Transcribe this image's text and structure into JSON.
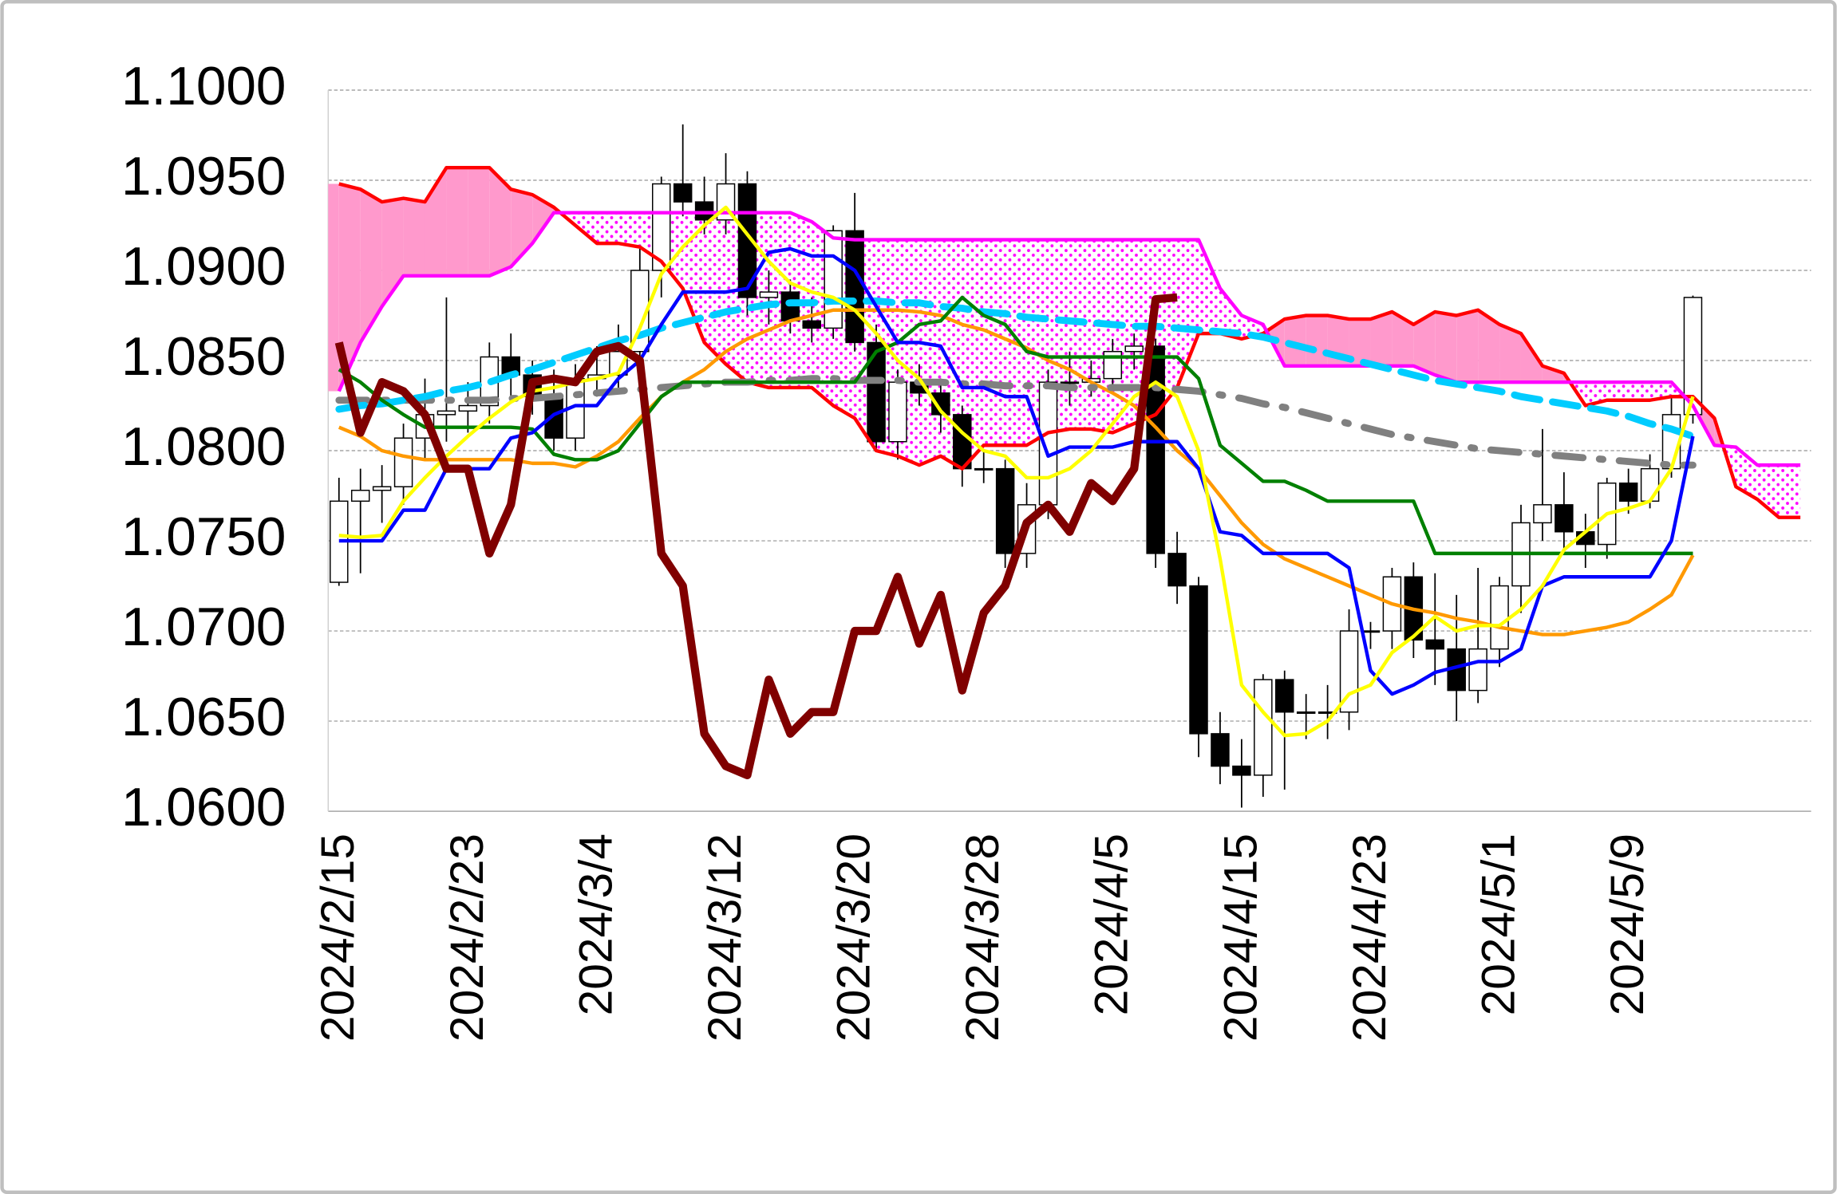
{
  "chart_data": {
    "type": "candlestick",
    "categories": [
      "2024/2/15",
      null,
      null,
      null,
      null,
      null,
      "2024/2/23",
      null,
      null,
      null,
      null,
      null,
      "2024/3/4",
      null,
      null,
      null,
      null,
      null,
      "2024/3/12",
      null,
      null,
      null,
      null,
      null,
      "2024/3/20",
      null,
      null,
      null,
      null,
      null,
      "2024/3/28",
      null,
      null,
      null,
      null,
      null,
      "2024/4/5",
      null,
      null,
      null,
      null,
      null,
      "2024/4/15",
      null,
      null,
      null,
      null,
      null,
      "2024/4/23",
      null,
      null,
      null,
      null,
      null,
      "2024/5/1",
      null,
      null,
      null,
      null,
      null,
      "2024/5/9",
      null,
      null,
      null,
      null,
      null,
      null,
      null,
      null
    ],
    "open": [
      1.0727,
      1.0772,
      1.0778,
      1.078,
      1.0807,
      1.082,
      1.0822,
      1.0825,
      1.0852,
      1.0842,
      1.083,
      1.0807,
      1.084,
      1.0842,
      1.0855,
      1.09,
      1.0948,
      1.0938,
      1.0928,
      1.0948,
      1.0885,
      1.0888,
      1.0872,
      1.0868,
      1.0922,
      1.086,
      1.0805,
      1.0838,
      1.0832,
      1.082,
      1.079,
      1.079,
      1.0743,
      1.077,
      1.0838,
      1.0838,
      1.084,
      1.0855,
      1.0858,
      1.0743,
      1.0725,
      1.0643,
      1.0625,
      1.062,
      1.0673,
      1.0655,
      1.0655,
      1.0655,
      1.07,
      1.07,
      1.073,
      1.0695,
      1.069,
      1.0667,
      1.069,
      1.0725,
      1.076,
      1.077,
      1.0755,
      1.0748,
      1.0782,
      1.0772,
      1.079,
      1.082,
      null,
      null,
      null,
      null,
      null
    ],
    "high": [
      1.0785,
      1.079,
      1.0792,
      1.0815,
      1.084,
      1.0885,
      1.0838,
      1.086,
      1.0865,
      1.085,
      1.0845,
      1.0848,
      1.0858,
      1.087,
      1.0912,
      1.0952,
      1.0981,
      1.0952,
      1.0965,
      1.0955,
      1.09,
      1.0895,
      1.0885,
      1.0925,
      1.0943,
      1.087,
      1.0845,
      1.0848,
      1.084,
      1.0825,
      1.08,
      1.0795,
      1.0782,
      1.0845,
      1.0855,
      1.085,
      1.0862,
      1.0865,
      1.0862,
      1.0755,
      1.073,
      1.0655,
      1.064,
      1.0676,
      1.0678,
      1.0665,
      1.067,
      1.0712,
      1.0705,
      1.0735,
      1.0738,
      1.0732,
      1.072,
      1.0735,
      1.073,
      1.077,
      1.0812,
      1.0788,
      1.0765,
      1.0785,
      1.079,
      1.0798,
      1.083,
      1.0886,
      null,
      null,
      null,
      null,
      null
    ],
    "low": [
      1.0725,
      1.0732,
      1.076,
      1.077,
      1.0795,
      1.0805,
      1.081,
      1.0815,
      1.083,
      1.082,
      1.08,
      1.08,
      1.083,
      1.0835,
      1.085,
      1.0885,
      1.093,
      1.092,
      1.092,
      1.0875,
      1.087,
      1.0865,
      1.086,
      1.0862,
      1.0855,
      1.08,
      1.0795,
      1.0825,
      1.081,
      1.078,
      1.0782,
      1.0735,
      1.0735,
      1.0762,
      1.0825,
      1.083,
      1.0835,
      1.0845,
      1.0735,
      1.0715,
      1.063,
      1.0615,
      1.0602,
      1.0608,
      1.0612,
      1.064,
      1.064,
      1.0645,
      1.069,
      1.069,
      1.0685,
      1.067,
      1.065,
      1.066,
      1.068,
      1.071,
      1.075,
      1.0745,
      1.0735,
      1.074,
      1.0765,
      1.0768,
      1.0785,
      1.0815,
      null,
      null,
      null,
      null,
      null
    ],
    "close": [
      1.0772,
      1.0778,
      1.078,
      1.0807,
      1.082,
      1.0822,
      1.0825,
      1.0852,
      1.0842,
      1.083,
      1.0807,
      1.084,
      1.0842,
      1.0855,
      1.09,
      1.0948,
      1.0938,
      1.0928,
      1.0948,
      1.0885,
      1.0888,
      1.0872,
      1.0868,
      1.0922,
      1.086,
      1.0805,
      1.0838,
      1.0832,
      1.082,
      1.079,
      1.079,
      1.0743,
      1.077,
      1.0838,
      1.0838,
      1.084,
      1.0855,
      1.0858,
      1.0743,
      1.0725,
      1.0643,
      1.0625,
      1.062,
      1.0673,
      1.0655,
      1.0655,
      1.0655,
      1.07,
      1.07,
      1.073,
      1.0695,
      1.069,
      1.0667,
      1.069,
      1.0725,
      1.076,
      1.077,
      1.0755,
      1.0748,
      1.0782,
      1.0772,
      1.079,
      1.082,
      1.0885,
      null,
      null,
      null,
      null,
      null
    ],
    "up_color": "#ffffff",
    "down_color": "#000000",
    "cloud": {
      "a_above": "#ff99cc",
      "b_above": "#ff00ff"
    },
    "series": [
      {
        "cloud": "a",
        "color": "#ff0000",
        "width": 3,
        "values": [
          1.0948,
          1.0945,
          1.0938,
          1.094,
          1.0938,
          1.0957,
          1.0957,
          1.0957,
          1.0945,
          1.0942,
          1.0935,
          1.0925,
          1.0915,
          1.0915,
          1.0913,
          1.0905,
          1.089,
          1.086,
          1.0848,
          1.0838,
          1.0835,
          1.0835,
          1.0835,
          1.0825,
          1.0818,
          1.08,
          1.0797,
          1.0792,
          1.0797,
          1.079,
          1.0803,
          1.0803,
          1.0803,
          1.081,
          1.0812,
          1.0812,
          1.081,
          1.0815,
          1.082,
          1.0835,
          1.0865,
          1.0865,
          1.0862,
          1.0865,
          1.0873,
          1.0875,
          1.0875,
          1.0873,
          1.0873,
          1.0877,
          1.087,
          1.0877,
          1.0875,
          1.0878,
          1.087,
          1.0865,
          1.0847,
          1.0843,
          1.0825,
          1.0828,
          1.0828,
          1.0828,
          1.083,
          1.083,
          1.0818,
          1.078,
          1.0773,
          1.0763,
          1.0763
        ]
      },
      {
        "cloud": "b",
        "color": "#ff00ff",
        "width": 3,
        "values": [
          1.0833,
          1.086,
          1.088,
          1.0897,
          1.0897,
          1.0897,
          1.0897,
          1.0897,
          1.0902,
          1.0915,
          1.0932,
          1.0932,
          1.0932,
          1.0932,
          1.0932,
          1.0932,
          1.0932,
          1.0932,
          1.0932,
          1.0932,
          1.0932,
          1.0932,
          1.0927,
          1.0918,
          1.0917,
          1.0917,
          1.0917,
          1.0917,
          1.0917,
          1.0917,
          1.0917,
          1.0917,
          1.0917,
          1.0917,
          1.0917,
          1.0917,
          1.0917,
          1.0917,
          1.0917,
          1.0917,
          1.0917,
          1.089,
          1.0875,
          1.087,
          1.0847,
          1.0847,
          1.0847,
          1.0847,
          1.0847,
          1.0847,
          1.0847,
          1.0842,
          1.0838,
          1.0838,
          1.0838,
          1.0838,
          1.0838,
          1.0838,
          1.0838,
          1.0838,
          1.0838,
          1.0838,
          1.0838,
          1.0825,
          1.0803,
          1.0802,
          1.0792,
          1.0792,
          1.0792
        ]
      },
      {
        "color": "#ff9900",
        "width": 3,
        "values": [
          1.0813,
          1.0808,
          1.08,
          1.0797,
          1.0795,
          1.0795,
          1.0795,
          1.0795,
          1.0795,
          1.0793,
          1.0793,
          1.0791,
          1.0797,
          1.0805,
          1.0818,
          1.083,
          1.0838,
          1.0845,
          1.0855,
          1.0862,
          1.0867,
          1.0872,
          1.0875,
          1.0878,
          1.0878,
          1.0878,
          1.0878,
          1.0877,
          1.0875,
          1.087,
          1.0867,
          1.0862,
          1.0857,
          1.085,
          1.0845,
          1.0838,
          1.0832,
          1.0825,
          1.0813,
          1.08,
          1.079,
          1.0775,
          1.076,
          1.0748,
          1.074,
          1.0735,
          1.073,
          1.0725,
          1.072,
          1.0715,
          1.0712,
          1.071,
          1.0707,
          1.0705,
          1.0702,
          1.07,
          1.0698,
          1.0698,
          1.07,
          1.0702,
          1.0705,
          1.0712,
          1.072,
          1.0742,
          null,
          null,
          null,
          null,
          null
        ]
      },
      {
        "color": "#808080",
        "width": 6,
        "dash": "dash-dot",
        "values": [
          1.0828,
          1.0828,
          1.0828,
          1.0828,
          1.0828,
          1.0828,
          1.0828,
          1.0828,
          1.0829,
          1.0829,
          1.083,
          1.0831,
          1.0832,
          1.0833,
          1.0834,
          1.0835,
          1.0836,
          1.0837,
          1.0838,
          1.0838,
          1.0839,
          1.0839,
          1.084,
          1.084,
          1.0839,
          1.0839,
          1.0839,
          1.0838,
          1.0838,
          1.0837,
          1.0837,
          1.0836,
          1.0836,
          1.0836,
          1.0835,
          1.0835,
          1.0835,
          1.0835,
          1.0835,
          1.0834,
          1.0833,
          1.0831,
          1.0829,
          1.0826,
          1.0824,
          1.0821,
          1.0818,
          1.0815,
          1.0812,
          1.0809,
          1.0807,
          1.0805,
          1.0803,
          1.0801,
          1.08,
          1.0799,
          1.0798,
          1.0797,
          1.0796,
          1.0795,
          1.0794,
          1.0793,
          1.0792,
          1.0792,
          null,
          null,
          null,
          null,
          null
        ]
      },
      {
        "color": "#00ccff",
        "width": 6,
        "dash": "dashed",
        "values": [
          1.0823,
          1.0825,
          1.0826,
          1.0828,
          1.083,
          1.0833,
          1.0835,
          1.0838,
          1.0842,
          1.0845,
          1.0849,
          1.0853,
          1.0857,
          1.0861,
          1.0864,
          1.0868,
          1.0871,
          1.0874,
          1.0877,
          1.0879,
          1.0881,
          1.0882,
          1.0882,
          1.0883,
          1.0883,
          1.0883,
          1.0882,
          1.0882,
          1.088,
          1.0879,
          1.0877,
          1.0876,
          1.0874,
          1.0873,
          1.0872,
          1.0871,
          1.087,
          1.0869,
          1.0869,
          1.0868,
          1.0867,
          1.0866,
          1.0865,
          1.0863,
          1.086,
          1.0857,
          1.0854,
          1.0851,
          1.0848,
          1.0845,
          1.0842,
          1.0839,
          1.0837,
          1.0835,
          1.0833,
          1.083,
          1.0828,
          1.0826,
          1.0824,
          1.0822,
          1.0819,
          1.0815,
          1.0812,
          1.0808,
          null,
          null,
          null,
          null,
          null
        ]
      },
      {
        "color": "#008000",
        "width": 3,
        "values": [
          1.0845,
          1.0838,
          1.0828,
          1.082,
          1.0813,
          1.0813,
          1.0813,
          1.0813,
          1.0813,
          1.0812,
          1.0798,
          1.0795,
          1.0795,
          1.08,
          1.0815,
          1.083,
          1.0838,
          1.0838,
          1.0838,
          1.0838,
          1.0838,
          1.0838,
          1.0838,
          1.0838,
          1.0838,
          1.0855,
          1.086,
          1.087,
          1.0872,
          1.0885,
          1.0875,
          1.087,
          1.0855,
          1.0852,
          1.0852,
          1.0852,
          1.0852,
          1.0852,
          1.0852,
          1.0852,
          1.084,
          1.0803,
          1.0793,
          1.0783,
          1.0783,
          1.0778,
          1.0772,
          1.0772,
          1.0772,
          1.0772,
          1.0772,
          1.0743,
          1.0743,
          1.0743,
          1.0743,
          1.0743,
          1.0743,
          1.0743,
          1.0743,
          1.0743,
          1.0743,
          1.0743,
          1.0743,
          1.0743,
          null,
          null,
          null,
          null,
          null
        ]
      },
      {
        "color": "#0000ff",
        "width": 3,
        "values": [
          1.075,
          1.075,
          1.075,
          1.0767,
          1.0767,
          1.079,
          1.079,
          1.079,
          1.0807,
          1.081,
          1.082,
          1.0825,
          1.0825,
          1.084,
          1.085,
          1.087,
          1.0888,
          1.0888,
          1.0888,
          1.089,
          1.091,
          1.0912,
          1.0908,
          1.0908,
          1.09,
          1.088,
          1.086,
          1.086,
          1.0858,
          1.0835,
          1.0835,
          1.083,
          1.083,
          1.0797,
          1.0802,
          1.0802,
          1.0802,
          1.0805,
          1.0805,
          1.0805,
          1.079,
          1.0755,
          1.0753,
          1.0743,
          1.0743,
          1.0743,
          1.0743,
          1.0735,
          1.0678,
          1.0665,
          1.067,
          1.0677,
          1.068,
          1.0683,
          1.0683,
          1.069,
          1.0725,
          1.073,
          1.073,
          1.073,
          1.073,
          1.073,
          1.075,
          1.0808,
          null,
          null,
          null,
          null,
          null
        ]
      },
      {
        "color": "#ffff00",
        "width": 3,
        "values": [
          1.0753,
          1.0752,
          1.0753,
          1.0772,
          1.0785,
          1.0797,
          1.0808,
          1.0818,
          1.0827,
          1.0833,
          1.0835,
          1.0838,
          1.084,
          1.0843,
          1.0868,
          1.0898,
          1.0913,
          1.0925,
          1.0935,
          1.092,
          1.0905,
          1.0893,
          1.0888,
          1.0885,
          1.0878,
          1.0865,
          1.085,
          1.084,
          1.0822,
          1.081,
          1.08,
          1.0797,
          1.0785,
          1.0785,
          1.079,
          1.08,
          1.0815,
          1.083,
          1.0838,
          1.083,
          1.08,
          1.074,
          1.067,
          1.0655,
          1.0642,
          1.0643,
          1.065,
          1.0665,
          1.067,
          1.0688,
          1.0697,
          1.0708,
          1.07,
          1.0703,
          1.0703,
          1.0712,
          1.0725,
          1.0745,
          1.0755,
          1.0765,
          1.0768,
          1.0772,
          1.079,
          1.083,
          null,
          null,
          null,
          null,
          null
        ]
      },
      {
        "color": "#800000",
        "width": 7,
        "values": [
          1.086,
          1.081,
          1.0838,
          1.0833,
          1.082,
          1.079,
          1.079,
          1.0743,
          1.077,
          1.0838,
          1.084,
          1.0838,
          1.0855,
          1.0858,
          1.085,
          1.0743,
          1.0725,
          1.0643,
          1.0625,
          1.062,
          1.0673,
          1.0643,
          1.0655,
          1.0655,
          1.07,
          1.07,
          1.073,
          1.0693,
          1.072,
          1.0667,
          1.071,
          1.0725,
          1.076,
          1.077,
          1.0755,
          1.0782,
          1.0772,
          1.079,
          1.0884,
          1.0885,
          null,
          null,
          null,
          null,
          null,
          null,
          null,
          null,
          null,
          null,
          null,
          null,
          null,
          null,
          null,
          null,
          null,
          null,
          null,
          null,
          null,
          null,
          null,
          null,
          null,
          null,
          null,
          null,
          null
        ]
      }
    ],
    "ylim": [
      1.06,
      1.1
    ],
    "yticks": [
      {
        "value": 1.06,
        "label": "1.0600"
      },
      {
        "value": 1.065,
        "label": "1.0650"
      },
      {
        "value": 1.07,
        "label": "1.0700"
      },
      {
        "value": 1.075,
        "label": "1.0750"
      },
      {
        "value": 1.08,
        "label": "1.0800"
      },
      {
        "value": 1.085,
        "label": "1.0850"
      },
      {
        "value": 1.09,
        "label": "1.0900"
      },
      {
        "value": 1.095,
        "label": "1.0950"
      },
      {
        "value": 1.1,
        "label": "1.1000"
      }
    ],
    "grid": true
  }
}
